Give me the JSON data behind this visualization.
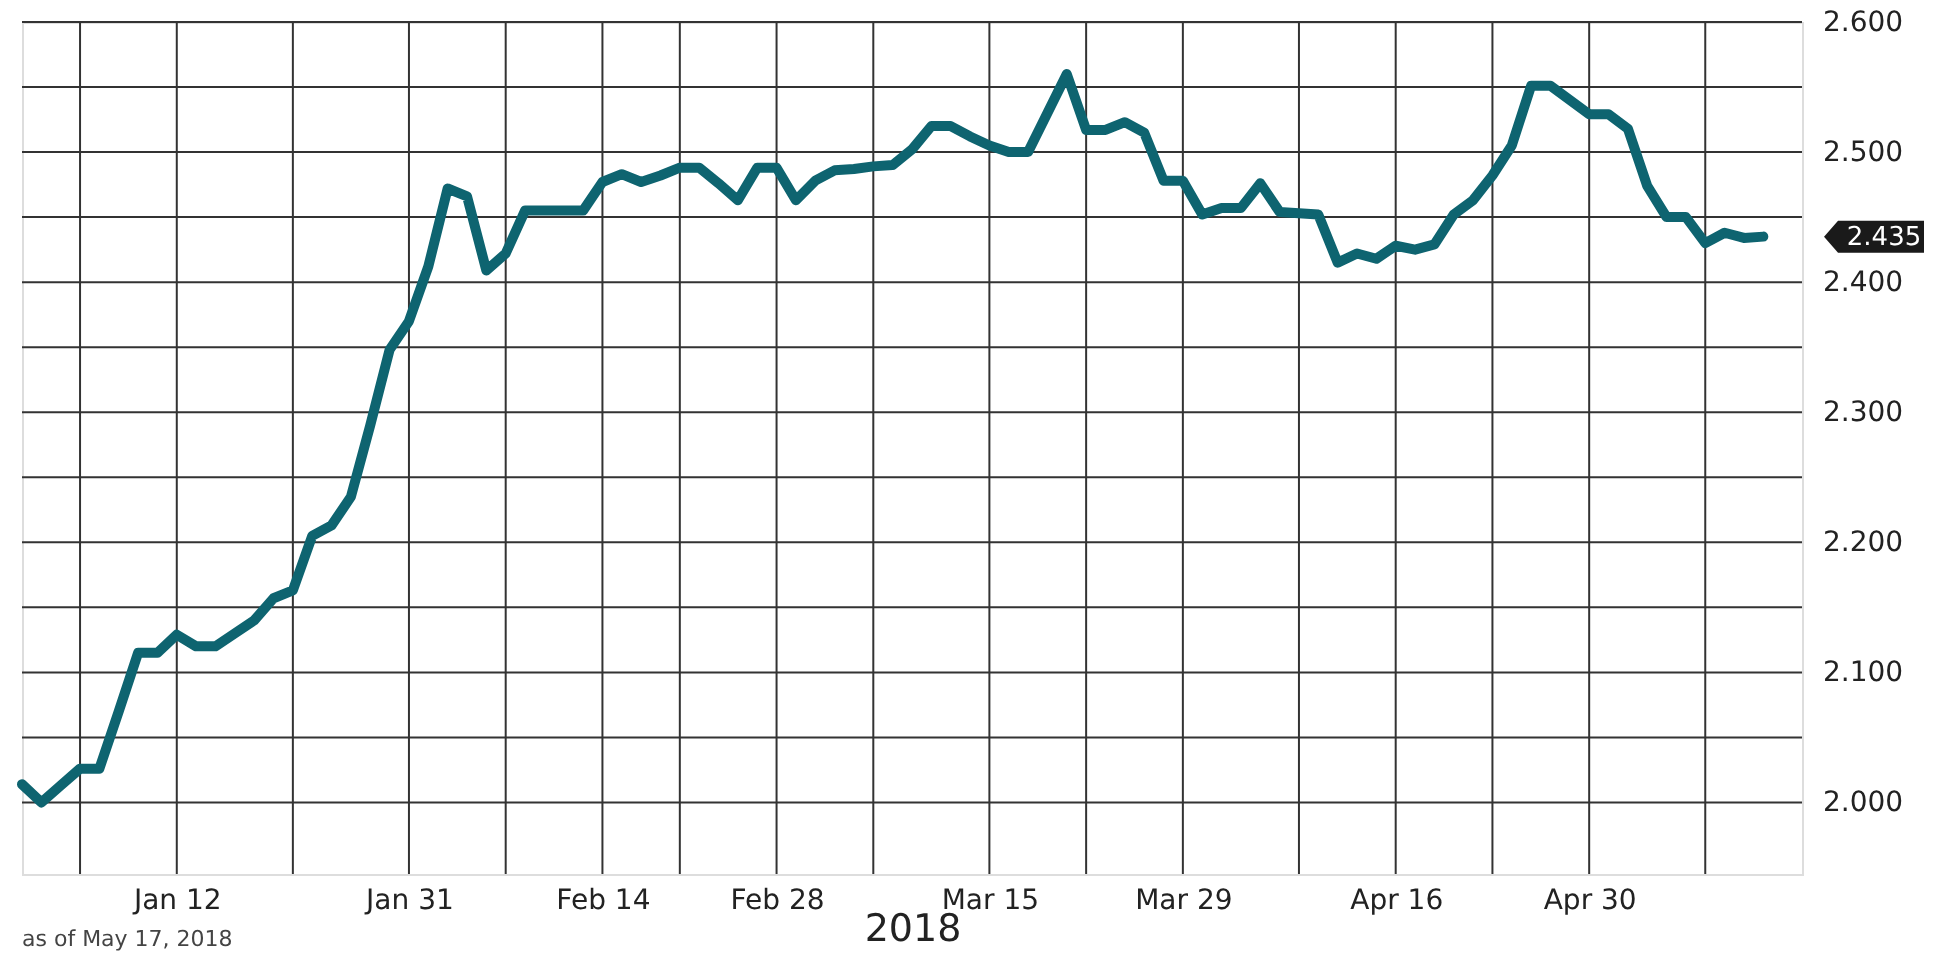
{
  "chart_data": {
    "type": "line",
    "xlabel": "2018",
    "categories": [
      null,
      null,
      null,
      null,
      null,
      null,
      null,
      null,
      "Jan 12",
      null,
      null,
      null,
      null,
      null,
      null,
      null,
      null,
      null,
      null,
      null,
      "Jan 31",
      null,
      null,
      null,
      null,
      null,
      null,
      null,
      null,
      null,
      "Feb 14",
      null,
      null,
      null,
      null,
      null,
      null,
      null,
      null,
      "Feb 28",
      null,
      null,
      null,
      null,
      null,
      null,
      null,
      null,
      null,
      null,
      "Mar 15",
      null,
      null,
      null,
      null,
      null,
      null,
      null,
      null,
      null,
      "Mar 29",
      null,
      null,
      null,
      null,
      null,
      null,
      null,
      null,
      null,
      null,
      "Apr 16",
      null,
      null,
      null,
      null,
      null,
      null,
      null,
      null,
      null,
      "Apr 30",
      null,
      null,
      null,
      null,
      null,
      null,
      null,
      null,
      null,
      null,
      null
    ],
    "series": [
      {
        "color": "#0e6470",
        "values": [
          2.014,
          2.0,
          2.013,
          2.026,
          2.026,
          2.07,
          2.115,
          2.115,
          2.129,
          2.12,
          2.12,
          2.13,
          2.14,
          2.157,
          2.163,
          2.205,
          2.213,
          2.235,
          2.29,
          2.348,
          2.37,
          2.412,
          2.472,
          2.466,
          2.409,
          2.422,
          2.455,
          2.455,
          2.455,
          2.455,
          2.477,
          2.483,
          2.477,
          2.482,
          2.488,
          2.488,
          2.476,
          2.463,
          2.488,
          2.488,
          2.463,
          2.478,
          2.486,
          2.487,
          2.489,
          2.49,
          2.502,
          2.52,
          2.52,
          2.512,
          2.505,
          2.5,
          2.5,
          2.53,
          2.56,
          2.517,
          2.517,
          2.523,
          2.515,
          2.478,
          2.478,
          2.452,
          2.457,
          2.457,
          2.476,
          2.454,
          2.453,
          2.452,
          2.415,
          2.422,
          2.418,
          2.428,
          2.425,
          2.429,
          2.452,
          2.463,
          2.482,
          2.505,
          2.551,
          2.551,
          2.54,
          2.529,
          2.529,
          2.518,
          2.474,
          2.45,
          2.45,
          2.43,
          2.438,
          2.434,
          2.435,
          null,
          null
        ]
      }
    ],
    "ylim": [
      1.945,
      2.6
    ],
    "yticks": [
      {
        "value": 2.0,
        "label": "2.000"
      },
      {
        "value": 2.05,
        "label": null
      },
      {
        "value": 2.1,
        "label": "2.100"
      },
      {
        "value": 2.15,
        "label": null
      },
      {
        "value": 2.2,
        "label": "2.200"
      },
      {
        "value": 2.25,
        "label": null
      },
      {
        "value": 2.3,
        "label": "2.300"
      },
      {
        "value": 2.35,
        "label": null
      },
      {
        "value": 2.4,
        "label": "2.400"
      },
      {
        "value": 2.45,
        "label": null
      },
      {
        "value": 2.5,
        "label": "2.500"
      },
      {
        "value": 2.55,
        "label": null
      },
      {
        "value": 2.6,
        "label": "2.600"
      }
    ],
    "grid": true,
    "marker": "none",
    "line_style": "solid",
    "annotations": [
      "2.435",
      "as of May 17, 2018"
    ]
  }
}
